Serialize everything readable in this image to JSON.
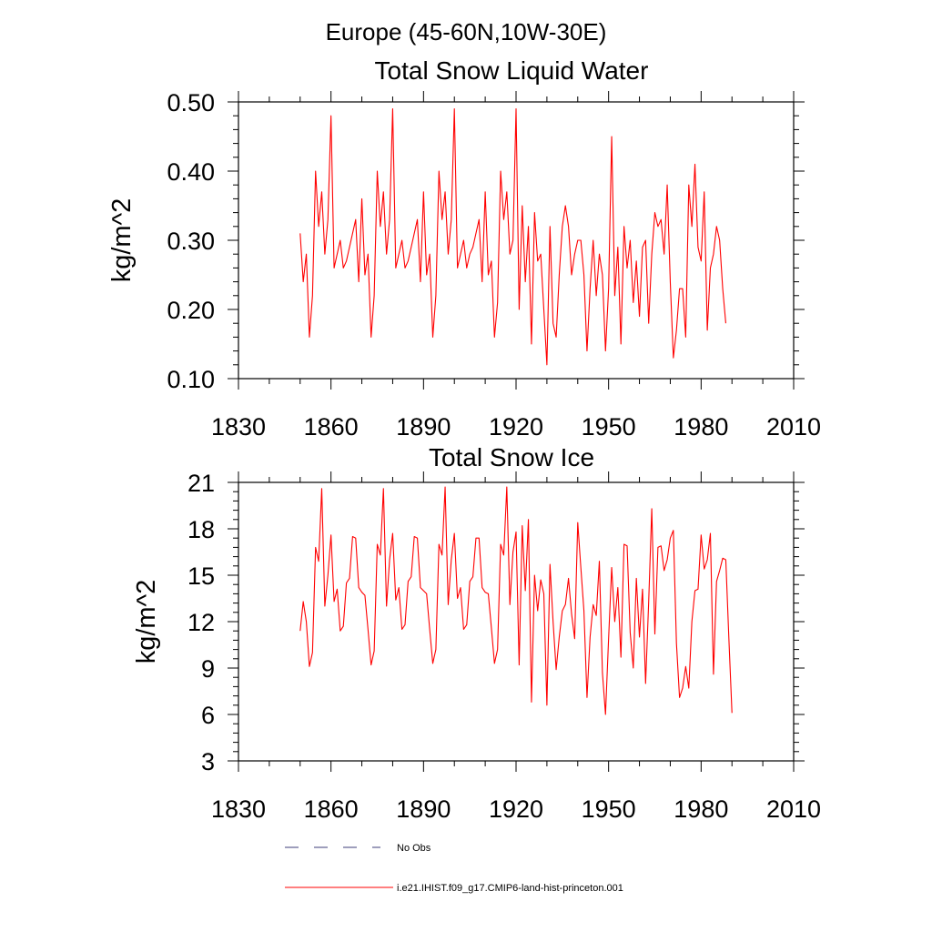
{
  "figure": {
    "suptitle": "Europe (45-60N,10W-30E)"
  },
  "chart_data": [
    {
      "type": "line",
      "title": "Total Snow Liquid Water",
      "xlabel": "",
      "ylabel": "kg/m^2",
      "xlim": [
        1830,
        2010
      ],
      "ylim": [
        0.1,
        0.5
      ],
      "xticks": [
        "1830",
        "1860",
        "1890",
        "1920",
        "1950",
        "1980",
        "2010"
      ],
      "xtick_values": [
        1830,
        1860,
        1890,
        1920,
        1950,
        1980,
        2010
      ],
      "yticks": [
        "0.10",
        "0.20",
        "0.30",
        "0.40",
        "0.50"
      ],
      "ytick_values": [
        0.1,
        0.2,
        0.3,
        0.4,
        0.5
      ],
      "grid": false,
      "series": [
        {
          "name": "i.e21.IHIST.f09_g17.CMIP6-land-hist-princeton.001",
          "color": "#ff0000",
          "x_start": 1850,
          "values": [
            0.31,
            0.24,
            0.28,
            0.16,
            0.22,
            0.4,
            0.32,
            0.37,
            0.28,
            0.33,
            0.48,
            0.26,
            0.28,
            0.3,
            0.26,
            0.27,
            0.29,
            0.31,
            0.33,
            0.24,
            0.36,
            0.25,
            0.28,
            0.16,
            0.22,
            0.4,
            0.32,
            0.37,
            0.28,
            0.33,
            0.49,
            0.26,
            0.28,
            0.3,
            0.26,
            0.27,
            0.29,
            0.31,
            0.33,
            0.24,
            0.37,
            0.25,
            0.28,
            0.16,
            0.22,
            0.4,
            0.33,
            0.37,
            0.28,
            0.33,
            0.49,
            0.26,
            0.28,
            0.3,
            0.26,
            0.28,
            0.29,
            0.31,
            0.33,
            0.24,
            0.37,
            0.25,
            0.27,
            0.16,
            0.21,
            0.4,
            0.33,
            0.37,
            0.28,
            0.3,
            0.49,
            0.2,
            0.35,
            0.24,
            0.32,
            0.15,
            0.34,
            0.27,
            0.28,
            0.2,
            0.12,
            0.32,
            0.18,
            0.16,
            0.25,
            0.32,
            0.35,
            0.32,
            0.25,
            0.28,
            0.3,
            0.3,
            0.25,
            0.14,
            0.23,
            0.3,
            0.22,
            0.28,
            0.25,
            0.14,
            0.23,
            0.45,
            0.22,
            0.29,
            0.15,
            0.32,
            0.26,
            0.3,
            0.21,
            0.27,
            0.19,
            0.29,
            0.3,
            0.18,
            0.28,
            0.34,
            0.32,
            0.33,
            0.28,
            0.38,
            0.24,
            0.13,
            0.17,
            0.23,
            0.23,
            0.16,
            0.38,
            0.32,
            0.41,
            0.29,
            0.27,
            0.37,
            0.17,
            0.26,
            0.28,
            0.32,
            0.3,
            0.23,
            0.18
          ]
        }
      ]
    },
    {
      "type": "line",
      "title": "Total Snow Ice",
      "xlabel": "",
      "ylabel": "kg/m^2",
      "xlim": [
        1830,
        2010
      ],
      "ylim": [
        3,
        21
      ],
      "xticks": [
        "1830",
        "1860",
        "1890",
        "1920",
        "1950",
        "1980",
        "2010"
      ],
      "xtick_values": [
        1830,
        1860,
        1890,
        1920,
        1950,
        1980,
        2010
      ],
      "yticks": [
        "3",
        "6",
        "9",
        "12",
        "15",
        "18",
        "21"
      ],
      "ytick_values": [
        3,
        6,
        9,
        12,
        15,
        18,
        21
      ],
      "grid": false,
      "series": [
        {
          "name": "i.e21.IHIST.f09_g17.CMIP6-land-hist-princeton.001",
          "color": "#ff0000",
          "x_start": 1850,
          "values": [
            11.4,
            13.3,
            12.0,
            9.1,
            10.0,
            16.8,
            15.9,
            20.6,
            13.0,
            15.0,
            17.6,
            13.3,
            14.1,
            11.4,
            11.7,
            14.5,
            14.8,
            17.5,
            17.4,
            14.2,
            13.9,
            13.7,
            11.5,
            9.2,
            10.1,
            17.0,
            16.3,
            20.6,
            13.0,
            16.0,
            17.7,
            13.4,
            14.2,
            11.5,
            11.8,
            14.6,
            14.9,
            17.5,
            17.4,
            14.2,
            14.0,
            13.8,
            11.5,
            9.3,
            10.2,
            17.0,
            16.3,
            20.7,
            13.1,
            16.0,
            17.7,
            13.5,
            14.2,
            11.5,
            11.8,
            14.6,
            14.9,
            17.4,
            17.4,
            14.2,
            13.9,
            13.8,
            11.6,
            9.3,
            10.2,
            17.0,
            16.3,
            20.7,
            13.1,
            16.5,
            17.8,
            9.2,
            18.2,
            14.0,
            18.6,
            6.8,
            15.0,
            12.7,
            14.7,
            13.8,
            6.6,
            15.7,
            12.0,
            8.9,
            11.0,
            12.7,
            13.1,
            14.8,
            12.5,
            10.9,
            18.4,
            15.5,
            12.7,
            7.1,
            11.0,
            13.1,
            12.4,
            15.9,
            8.7,
            6.0,
            10.9,
            15.5,
            12.0,
            14.2,
            9.7,
            17.0,
            16.9,
            11.3,
            9.0,
            14.8,
            11.0,
            14.1,
            8.0,
            13.3,
            19.3,
            11.2,
            16.8,
            16.9,
            15.3,
            16.0,
            17.4,
            17.9,
            10.6,
            7.1,
            7.7,
            9.1,
            7.7,
            12.0,
            14.0,
            14.1,
            17.6,
            15.4,
            16.0,
            17.7,
            8.6,
            14.6,
            15.3,
            16.1,
            16.0,
            10.9,
            6.1
          ]
        }
      ]
    }
  ],
  "legend": {
    "placement": "bottom",
    "entries": [
      {
        "label": "No Obs",
        "color": "#3c3c78",
        "style": "dashed"
      },
      {
        "label": "i.e21.IHIST.f09_g17.CMIP6-land-hist-princeton.001",
        "color": "#ff0000",
        "style": "solid"
      }
    ]
  }
}
